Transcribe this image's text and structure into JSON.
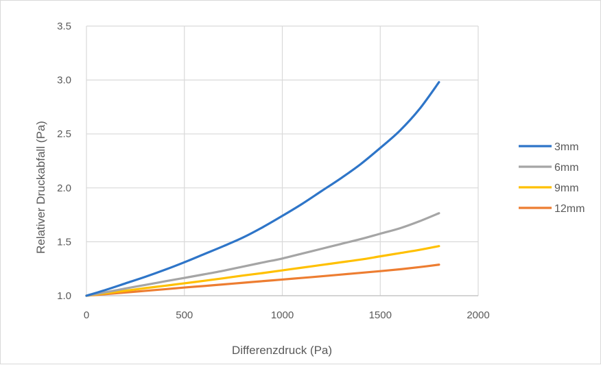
{
  "chart_data": {
    "type": "line",
    "title": "",
    "xlabel": "Differenzdruck (Pa)",
    "ylabel": "Relativer Druckabfall (Pa)",
    "xlim": [
      0,
      2000
    ],
    "ylim": [
      1.0,
      3.5
    ],
    "xticks": [
      0,
      500,
      1000,
      1500,
      2000
    ],
    "yticks": [
      1.0,
      1.5,
      2.0,
      2.5,
      3.0,
      3.5
    ],
    "xtick_labels": [
      "0",
      "500",
      "1000",
      "1500",
      "2000"
    ],
    "ytick_labels": [
      "1.0",
      "1.5",
      "2.0",
      "2.5",
      "3.0",
      "3.5"
    ],
    "grid": "on",
    "legend_position": "right",
    "x": [
      0,
      100,
      200,
      300,
      400,
      500,
      600,
      700,
      800,
      900,
      1000,
      1100,
      1200,
      1300,
      1400,
      1500,
      1600,
      1700,
      1800
    ],
    "series": [
      {
        "name": "3mm",
        "color": "#2e75c8",
        "values": [
          1.0,
          1.055,
          1.115,
          1.175,
          1.24,
          1.31,
          1.385,
          1.46,
          1.54,
          1.635,
          1.74,
          1.85,
          1.97,
          2.09,
          2.22,
          2.37,
          2.53,
          2.73,
          2.98
        ]
      },
      {
        "name": "6mm",
        "color": "#a5a5a5",
        "values": [
          1.0,
          1.033,
          1.067,
          1.1,
          1.133,
          1.165,
          1.198,
          1.232,
          1.27,
          1.308,
          1.345,
          1.39,
          1.435,
          1.48,
          1.525,
          1.575,
          1.625,
          1.69,
          1.765
        ]
      },
      {
        "name": "9mm",
        "color": "#ffc000",
        "values": [
          1.0,
          1.023,
          1.046,
          1.07,
          1.092,
          1.115,
          1.138,
          1.162,
          1.187,
          1.21,
          1.235,
          1.26,
          1.285,
          1.31,
          1.335,
          1.365,
          1.395,
          1.425,
          1.46
        ]
      },
      {
        "name": "12mm",
        "color": "#ed7d31",
        "values": [
          1.0,
          1.015,
          1.03,
          1.045,
          1.06,
          1.076,
          1.09,
          1.105,
          1.12,
          1.135,
          1.15,
          1.165,
          1.18,
          1.196,
          1.212,
          1.228,
          1.245,
          1.265,
          1.288
        ]
      }
    ]
  }
}
